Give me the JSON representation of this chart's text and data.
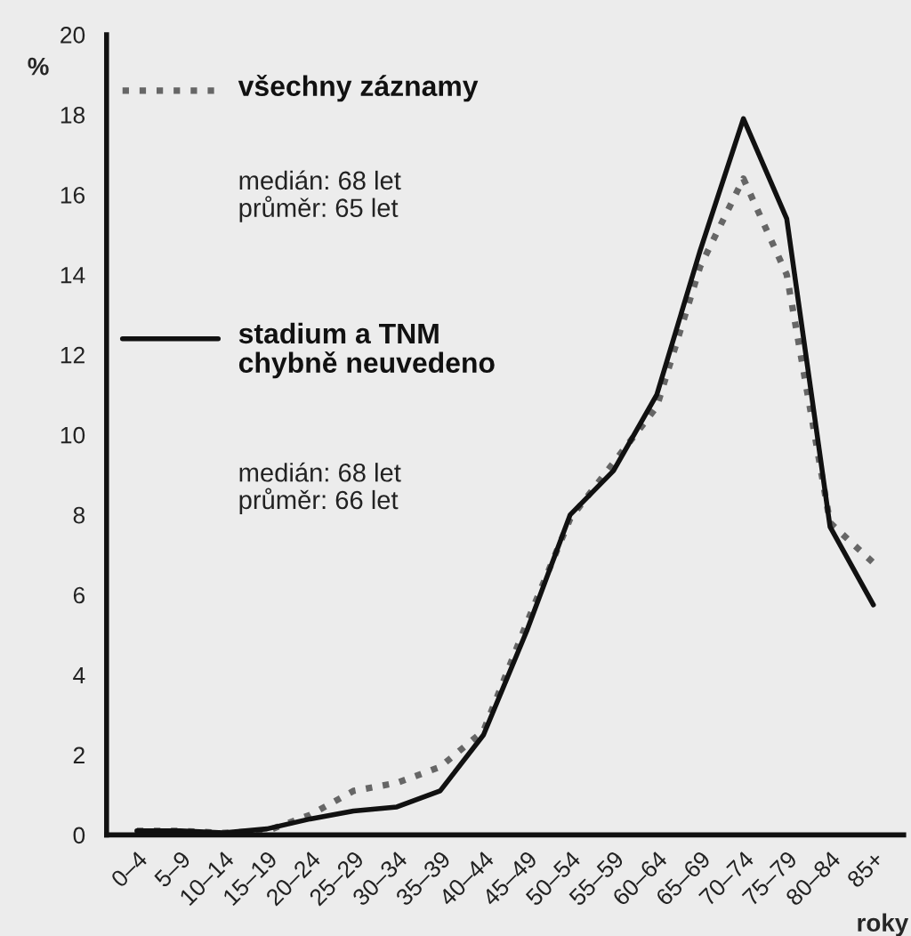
{
  "chart_data": {
    "type": "line",
    "ylabel": "%",
    "xlabel": "roky",
    "categories": [
      "0–4",
      "5–9",
      "10–14",
      "15–19",
      "20–24",
      "25–29",
      "30–34",
      "35–39",
      "40–44",
      "45–49",
      "50–54",
      "55–59",
      "60–64",
      "65–69",
      "70–74",
      "75–79",
      "80–84",
      "85+"
    ],
    "series": [
      {
        "name": "všechny záznamy",
        "color": "#666666",
        "line_style": "dotted",
        "values": [
          0.1,
          0.1,
          0.05,
          0.1,
          0.5,
          1.1,
          1.3,
          1.7,
          2.6,
          5.3,
          7.9,
          9.3,
          10.7,
          14.2,
          16.4,
          14.0,
          7.8,
          6.8
        ]
      },
      {
        "name": "stadium a TNM\nchybně neuvedeno",
        "color": "#111111",
        "line_style": "solid",
        "values": [
          0.1,
          0.1,
          0.05,
          0.15,
          0.4,
          0.6,
          0.7,
          1.1,
          2.5,
          5.1,
          8.0,
          9.1,
          11.0,
          14.6,
          17.9,
          15.4,
          7.7,
          5.75
        ]
      }
    ],
    "annotations": [
      "medián: 68 let\nprůměr: 65 let",
      "medián: 68 let\nprůměr: 66 let"
    ],
    "ylim": [
      0,
      20
    ],
    "yticks": [
      0,
      2,
      4,
      6,
      8,
      10,
      12,
      14,
      16,
      18,
      20
    ],
    "grid": false,
    "legend": "top left",
    "marker": "none"
  }
}
